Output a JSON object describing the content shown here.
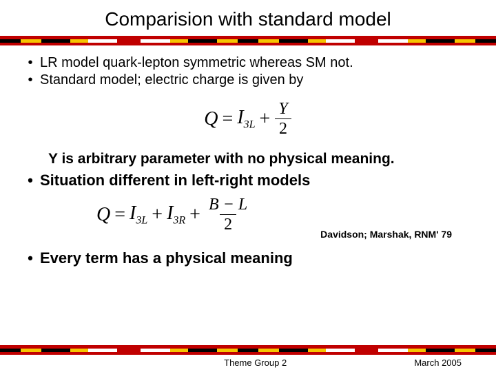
{
  "title": "Comparision with standard model",
  "bullets": {
    "b1": "LR model quark-lepton symmetric whereas SM not.",
    "b2": "Standard model; electric charge is given by",
    "b3": "Situation different in left-right models",
    "b4": "Every term has a physical meaning"
  },
  "indent_line": "Y is arbitrary parameter with no physical meaning.",
  "eq1": {
    "lhs": "Q",
    "eq": "=",
    "term1_base": "I",
    "term1_sub": "3L",
    "plus": "+",
    "frac_num": "Y",
    "frac_den": "2"
  },
  "eq2": {
    "lhs": "Q",
    "eq": "=",
    "t1_base": "I",
    "t1_sub": "3L",
    "plus1": "+",
    "t2_base": "I",
    "t2_sub": "3R",
    "plus2": "+",
    "frac_num": "B − L",
    "frac_den": "2"
  },
  "citation": "Davidson; Marshak, RNM' 79",
  "footer": {
    "center": "Theme Group 2",
    "right": "March 2005"
  },
  "flag_colors": {
    "red": "#c00000",
    "black": "#000000",
    "yellow": "#f6c500",
    "white": "#ffffff"
  },
  "flag_segments": [
    {
      "c": "#000000",
      "w": 7
    },
    {
      "c": "#f6c500",
      "w": 7
    },
    {
      "c": "#000000",
      "w": 10
    },
    {
      "c": "#f6c500",
      "w": 6
    },
    {
      "c": "#ffffff",
      "w": 10
    },
    {
      "c": "#c00000",
      "w": 8
    },
    {
      "c": "#ffffff",
      "w": 10
    },
    {
      "c": "#f6c500",
      "w": 6
    },
    {
      "c": "#000000",
      "w": 10
    },
    {
      "c": "#f6c500",
      "w": 7
    },
    {
      "c": "#000000",
      "w": 7
    },
    {
      "c": "#f6c500",
      "w": 7
    },
    {
      "c": "#000000",
      "w": 10
    },
    {
      "c": "#f6c500",
      "w": 6
    },
    {
      "c": "#ffffff",
      "w": 10
    },
    {
      "c": "#c00000",
      "w": 8
    },
    {
      "c": "#ffffff",
      "w": 10
    },
    {
      "c": "#f6c500",
      "w": 6
    },
    {
      "c": "#000000",
      "w": 10
    },
    {
      "c": "#f6c500",
      "w": 7
    },
    {
      "c": "#000000",
      "w": 7
    }
  ]
}
